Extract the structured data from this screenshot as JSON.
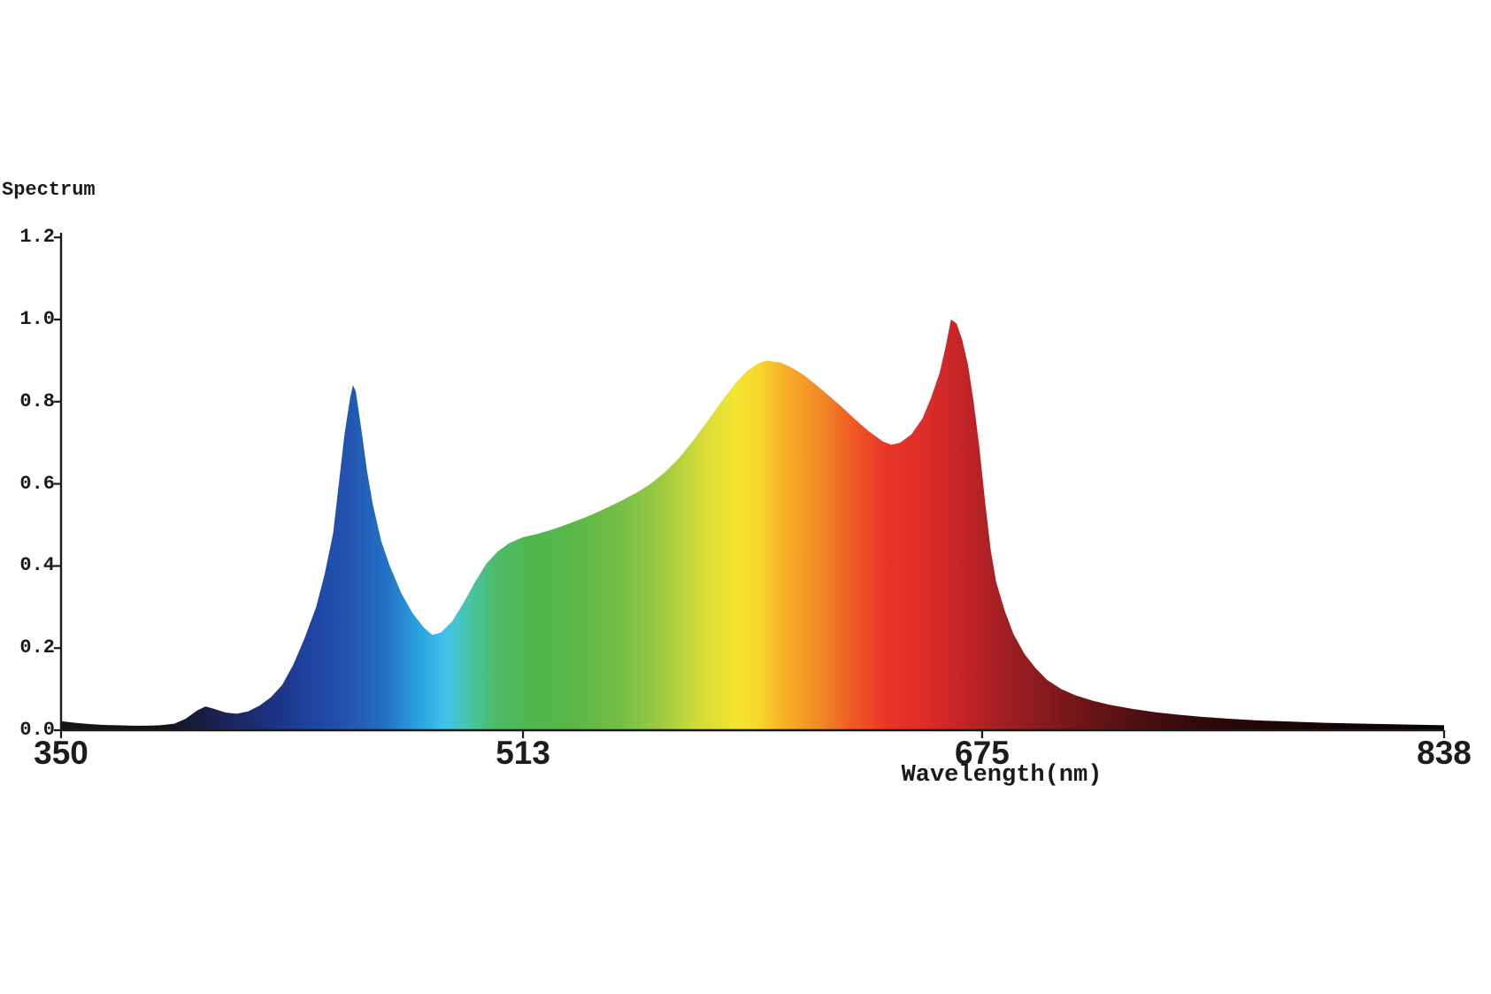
{
  "page": {
    "background": "#ffffff"
  },
  "chart_data": {
    "type": "area",
    "title": "Spectrum",
    "xlabel": "Wavelength(nm)",
    "ylabel": "",
    "xlim": [
      350,
      838
    ],
    "ylim": [
      0,
      1.2
    ],
    "grid": false,
    "legend": "none",
    "axis_color": "#1a1a1a",
    "text_color": "#1a1a1a",
    "x_ticks": [
      350,
      513,
      675,
      838
    ],
    "y_ticks": [
      "0.0",
      "0.2",
      "0.4",
      "0.6",
      "0.8",
      "1.0",
      "1.2"
    ],
    "annotations": {
      "blue_peak": {
        "nm": 453,
        "value": 0.84
      },
      "blue_valley": {
        "nm": 481,
        "value": 0.23
      },
      "orange_peak": {
        "nm": 599,
        "value": 0.9
      },
      "red_dip": {
        "nm": 643,
        "value": 0.695
      },
      "red_peak": {
        "nm": 664,
        "value": 1.0
      },
      "violet_bump": {
        "nm": 401,
        "value": 0.058
      }
    },
    "series": [
      {
        "name": "spectrum",
        "points": [
          [
            350,
            0.022
          ],
          [
            355,
            0.018
          ],
          [
            360,
            0.015
          ],
          [
            365,
            0.013
          ],
          [
            370,
            0.012
          ],
          [
            375,
            0.011
          ],
          [
            380,
            0.011
          ],
          [
            385,
            0.012
          ],
          [
            390,
            0.016
          ],
          [
            394,
            0.028
          ],
          [
            398,
            0.048
          ],
          [
            401,
            0.058
          ],
          [
            404,
            0.052
          ],
          [
            408,
            0.043
          ],
          [
            412,
            0.04
          ],
          [
            416,
            0.046
          ],
          [
            420,
            0.06
          ],
          [
            424,
            0.08
          ],
          [
            428,
            0.11
          ],
          [
            432,
            0.16
          ],
          [
            436,
            0.225
          ],
          [
            440,
            0.3
          ],
          [
            443,
            0.38
          ],
          [
            446,
            0.48
          ],
          [
            448,
            0.6
          ],
          [
            450,
            0.72
          ],
          [
            452,
            0.81
          ],
          [
            453,
            0.84
          ],
          [
            454,
            0.825
          ],
          [
            456,
            0.73
          ],
          [
            458,
            0.63
          ],
          [
            460,
            0.55
          ],
          [
            463,
            0.46
          ],
          [
            466,
            0.4
          ],
          [
            470,
            0.335
          ],
          [
            474,
            0.285
          ],
          [
            478,
            0.25
          ],
          [
            481,
            0.232
          ],
          [
            484,
            0.238
          ],
          [
            488,
            0.265
          ],
          [
            492,
            0.31
          ],
          [
            496,
            0.36
          ],
          [
            500,
            0.405
          ],
          [
            504,
            0.435
          ],
          [
            508,
            0.455
          ],
          [
            513,
            0.47
          ],
          [
            518,
            0.478
          ],
          [
            523,
            0.488
          ],
          [
            528,
            0.5
          ],
          [
            533,
            0.513
          ],
          [
            538,
            0.527
          ],
          [
            543,
            0.543
          ],
          [
            548,
            0.56
          ],
          [
            553,
            0.578
          ],
          [
            558,
            0.6
          ],
          [
            563,
            0.628
          ],
          [
            568,
            0.662
          ],
          [
            573,
            0.705
          ],
          [
            578,
            0.752
          ],
          [
            583,
            0.8
          ],
          [
            588,
            0.845
          ],
          [
            592,
            0.875
          ],
          [
            596,
            0.893
          ],
          [
            599,
            0.9
          ],
          [
            604,
            0.895
          ],
          [
            608,
            0.882
          ],
          [
            612,
            0.865
          ],
          [
            616,
            0.843
          ],
          [
            620,
            0.82
          ],
          [
            625,
            0.79
          ],
          [
            630,
            0.758
          ],
          [
            635,
            0.728
          ],
          [
            640,
            0.703
          ],
          [
            643,
            0.695
          ],
          [
            646,
            0.7
          ],
          [
            650,
            0.72
          ],
          [
            654,
            0.76
          ],
          [
            657,
            0.81
          ],
          [
            660,
            0.87
          ],
          [
            662,
            0.93
          ],
          [
            664,
            1.0
          ],
          [
            666,
            0.99
          ],
          [
            668,
            0.95
          ],
          [
            670,
            0.89
          ],
          [
            672,
            0.8
          ],
          [
            674,
            0.69
          ],
          [
            676,
            0.56
          ],
          [
            678,
            0.44
          ],
          [
            680,
            0.36
          ],
          [
            683,
            0.29
          ],
          [
            686,
            0.235
          ],
          [
            690,
            0.185
          ],
          [
            694,
            0.15
          ],
          [
            698,
            0.122
          ],
          [
            703,
            0.1
          ],
          [
            708,
            0.085
          ],
          [
            714,
            0.072
          ],
          [
            720,
            0.062
          ],
          [
            728,
            0.052
          ],
          [
            736,
            0.044
          ],
          [
            744,
            0.038
          ],
          [
            752,
            0.033
          ],
          [
            762,
            0.028
          ],
          [
            772,
            0.024
          ],
          [
            784,
            0.021
          ],
          [
            796,
            0.018
          ],
          [
            810,
            0.016
          ],
          [
            824,
            0.014
          ],
          [
            838,
            0.012
          ]
        ]
      }
    ],
    "wavelength_colors": [
      {
        "nm": 350,
        "color": "#141414"
      },
      {
        "nm": 385,
        "color": "#131318"
      },
      {
        "nm": 400,
        "color": "#191d42"
      },
      {
        "nm": 410,
        "color": "#1b2560"
      },
      {
        "nm": 425,
        "color": "#1c3384"
      },
      {
        "nm": 440,
        "color": "#1e46a4"
      },
      {
        "nm": 452,
        "color": "#2356b1"
      },
      {
        "nm": 465,
        "color": "#2272c5"
      },
      {
        "nm": 477,
        "color": "#2ba6e0"
      },
      {
        "nm": 486,
        "color": "#41c4ec"
      },
      {
        "nm": 494,
        "color": "#48c4a6"
      },
      {
        "nm": 503,
        "color": "#4cbc69"
      },
      {
        "nm": 515,
        "color": "#4fb74e"
      },
      {
        "nm": 530,
        "color": "#59b747"
      },
      {
        "nm": 548,
        "color": "#76bf45"
      },
      {
        "nm": 562,
        "color": "#9fca40"
      },
      {
        "nm": 576,
        "color": "#d5dc39"
      },
      {
        "nm": 588,
        "color": "#f2e52f"
      },
      {
        "nm": 597,
        "color": "#f8d42d"
      },
      {
        "nm": 605,
        "color": "#f6af29"
      },
      {
        "nm": 617,
        "color": "#f28d27"
      },
      {
        "nm": 629,
        "color": "#ef5a25"
      },
      {
        "nm": 641,
        "color": "#ea3528"
      },
      {
        "nm": 655,
        "color": "#dd2d28"
      },
      {
        "nm": 668,
        "color": "#c32427"
      },
      {
        "nm": 680,
        "color": "#a62023"
      },
      {
        "nm": 695,
        "color": "#8a1b1e"
      },
      {
        "nm": 712,
        "color": "#6b1517"
      },
      {
        "nm": 730,
        "color": "#4e0f11"
      },
      {
        "nm": 752,
        "color": "#32090a"
      },
      {
        "nm": 780,
        "color": "#1c0505"
      },
      {
        "nm": 810,
        "color": "#100303"
      },
      {
        "nm": 838,
        "color": "#0a0202"
      }
    ]
  }
}
